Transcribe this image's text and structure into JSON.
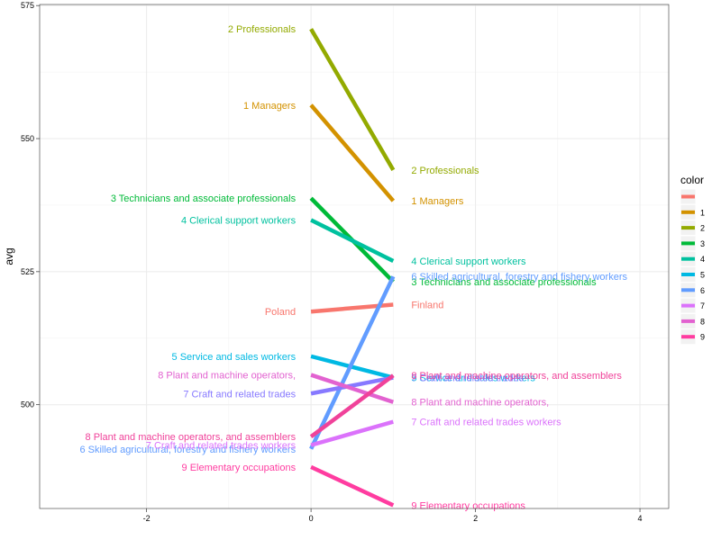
{
  "chart_data": {
    "type": "line",
    "title": "",
    "xlabel": "",
    "ylabel": "avg",
    "xlim": [
      -3.3,
      4.35
    ],
    "ylim": [
      480.5,
      575.2
    ],
    "xticks": [
      -2,
      0,
      2,
      4
    ],
    "yticks": [
      500,
      525,
      550,
      575
    ],
    "grid": true,
    "legend": {
      "title": "color",
      "placement": "right",
      "entries": [
        "",
        "1",
        "2",
        "3",
        "4",
        "5",
        "6",
        "7",
        "8",
        "9"
      ]
    },
    "series": [
      {
        "key": "",
        "color": "#F8766D",
        "x": [
          0,
          1
        ],
        "y": [
          517.5,
          518.8
        ],
        "left_label": "Poland",
        "right_label": "Finland"
      },
      {
        "key": "1",
        "color": "#D39200",
        "x": [
          0,
          1
        ],
        "y": [
          556.3,
          538.3
        ],
        "left_label": "1 Managers",
        "right_label": "1 Managers"
      },
      {
        "key": "2",
        "color": "#93AA00",
        "x": [
          0,
          1
        ],
        "y": [
          570.6,
          544.1
        ],
        "left_label": "2 Professionals",
        "right_label": "2 Professionals"
      },
      {
        "key": "3",
        "color": "#00BA38",
        "x": [
          0,
          1
        ],
        "y": [
          538.8,
          523.1
        ],
        "left_label": "3 Technicians and associate professionals",
        "right_label": "3 Technicians and associate professionals"
      },
      {
        "key": "4",
        "color": "#00C19F",
        "x": [
          0,
          1
        ],
        "y": [
          534.7,
          527.0
        ],
        "left_label": "4 Clerical support workers",
        "right_label": "4 Clerical support workers"
      },
      {
        "key": "5",
        "color": "#00B9E3",
        "x": [
          0,
          1
        ],
        "y": [
          509.1,
          505.1
        ],
        "left_label": "5 Service and sales workers",
        "right_label": "5 Service and sales workers"
      },
      {
        "key": "6",
        "color": "#619CFF",
        "x": [
          0,
          1
        ],
        "y": [
          491.7,
          524.1
        ],
        "left_label": "6 Skilled agricultural, forestry and fishery workers",
        "right_label": "6 Skilled agricultural, forestry and fishery workers"
      },
      {
        "key": "7",
        "color": "#DB72FB",
        "x": [
          0,
          1
        ],
        "y": [
          492.4,
          496.8
        ],
        "left_label": "7 Craft and related trades workers",
        "right_label": "7 Craft and related trades workers"
      },
      {
        "key": "7b",
        "color": "#8779ff",
        "x": [
          0,
          1
        ],
        "y": [
          502.1,
          505.1
        ],
        "left_label": "7 Craft and related trades",
        "right_label": "7 Craft and related trades"
      },
      {
        "key": "8",
        "color": "#E262D0",
        "x": [
          0,
          1
        ],
        "y": [
          505.6,
          500.5
        ],
        "left_label": "8 Plant and machine operators,",
        "right_label": "8 Plant and machine operators,"
      },
      {
        "key": "8b",
        "color": "#F0429A",
        "x": [
          0,
          1
        ],
        "y": [
          494.0,
          505.5
        ],
        "left_label": "8 Plant and machine operators, and assemblers",
        "right_label": "8 Plant and machine operators, and assemblers"
      },
      {
        "key": "9",
        "color": "#FF3CA0",
        "x": [
          0,
          1
        ],
        "y": [
          488.3,
          481.1
        ],
        "left_label": "9 Elementary occupations",
        "right_label": "9 Elementary occupations"
      }
    ]
  }
}
